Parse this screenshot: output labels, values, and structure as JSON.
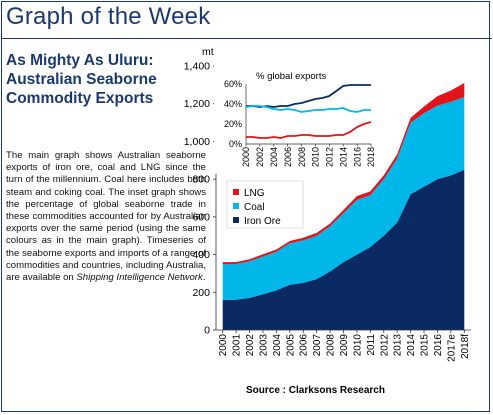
{
  "header": {
    "title": "Graph of the Week"
  },
  "article": {
    "headline": "As Mighty As Uluru: Australian Seaborne Commodity Exports",
    "body_part1": "The main graph shows Australian seaborne exports of iron ore, coal and LNG since the turn of the millennium. Coal here includes both steam and coking coal. The inset graph shows the percentage of global seaborne trade in these commodities accounted for by Australian exports over the same period (using the same colours as in the main graph). Timeseries of the seaborne exports and imports of a range of commodities and countries, including Australia, are available on ",
    "body_link": "Shipping Intelligence Network",
    "body_part2": "."
  },
  "source": "Source : Clarksons Research",
  "colors": {
    "lng": "#e3131b",
    "coal": "#00b7e9",
    "iron_ore": "#0b2a63",
    "brand": "#1a3a6e"
  },
  "chart_data": [
    {
      "type": "area",
      "stacked": true,
      "ylabel": "mt",
      "categories": [
        "2000",
        "2001",
        "2002",
        "2003",
        "2004",
        "2005",
        "2006",
        "2007",
        "2008",
        "2009",
        "2010",
        "2011",
        "2012",
        "2013",
        "2014",
        "2015",
        "2016",
        "2017e",
        "2018f"
      ],
      "ylim": [
        0,
        1400
      ],
      "yticks": [
        "0",
        "200",
        "400",
        "600",
        "800",
        "1,000",
        "1,200",
        "1,400"
      ],
      "grid": false,
      "legend_position": "middle-left",
      "series": [
        {
          "name": "Iron Ore",
          "color": "#0b2a63",
          "values": [
            160,
            160,
            170,
            190,
            210,
            240,
            250,
            270,
            310,
            360,
            400,
            440,
            500,
            570,
            720,
            760,
            800,
            820,
            850
          ]
        },
        {
          "name": "Coal",
          "color": "#00b7e9",
          "values": [
            190,
            190,
            195,
            200,
            205,
            220,
            225,
            230,
            240,
            260,
            290,
            275,
            300,
            340,
            380,
            390,
            390,
            390,
            385
          ]
        },
        {
          "name": "LNG",
          "color": "#e3131b",
          "values": [
            10,
            10,
            10,
            12,
            12,
            12,
            14,
            15,
            15,
            17,
            20,
            20,
            21,
            22,
            25,
            35,
            50,
            60,
            75
          ]
        }
      ]
    },
    {
      "type": "line",
      "title": "% global exports",
      "categories": [
        "2000",
        "2002",
        "2004",
        "2006",
        "2008",
        "2010",
        "2012",
        "2014",
        "2016",
        "2018"
      ],
      "x": [
        2000,
        2001,
        2002,
        2003,
        2004,
        2005,
        2006,
        2007,
        2008,
        2009,
        2010,
        2011,
        2012,
        2013,
        2014,
        2015,
        2016,
        2017,
        2018
      ],
      "ylim": [
        0,
        60
      ],
      "yticks": [
        "0%",
        "20%",
        "40%",
        "60%"
      ],
      "series": [
        {
          "name": "Iron Ore",
          "color": "#0b2a63",
          "values": [
            38,
            38,
            37,
            38,
            37,
            38,
            38,
            40,
            41,
            43,
            45,
            46,
            48,
            53,
            58,
            59,
            59,
            59,
            59
          ]
        },
        {
          "name": "Coal",
          "color": "#00b7e9",
          "values": [
            37,
            38,
            38,
            37,
            35,
            34,
            35,
            34,
            32,
            33,
            34,
            34,
            35,
            35,
            36,
            33,
            32,
            34,
            34
          ]
        },
        {
          "name": "LNG",
          "color": "#e3131b",
          "values": [
            7,
            7,
            6,
            6,
            7,
            6,
            8,
            8,
            9,
            9,
            8,
            8,
            8,
            9,
            9,
            12,
            17,
            20,
            22
          ]
        }
      ]
    }
  ]
}
